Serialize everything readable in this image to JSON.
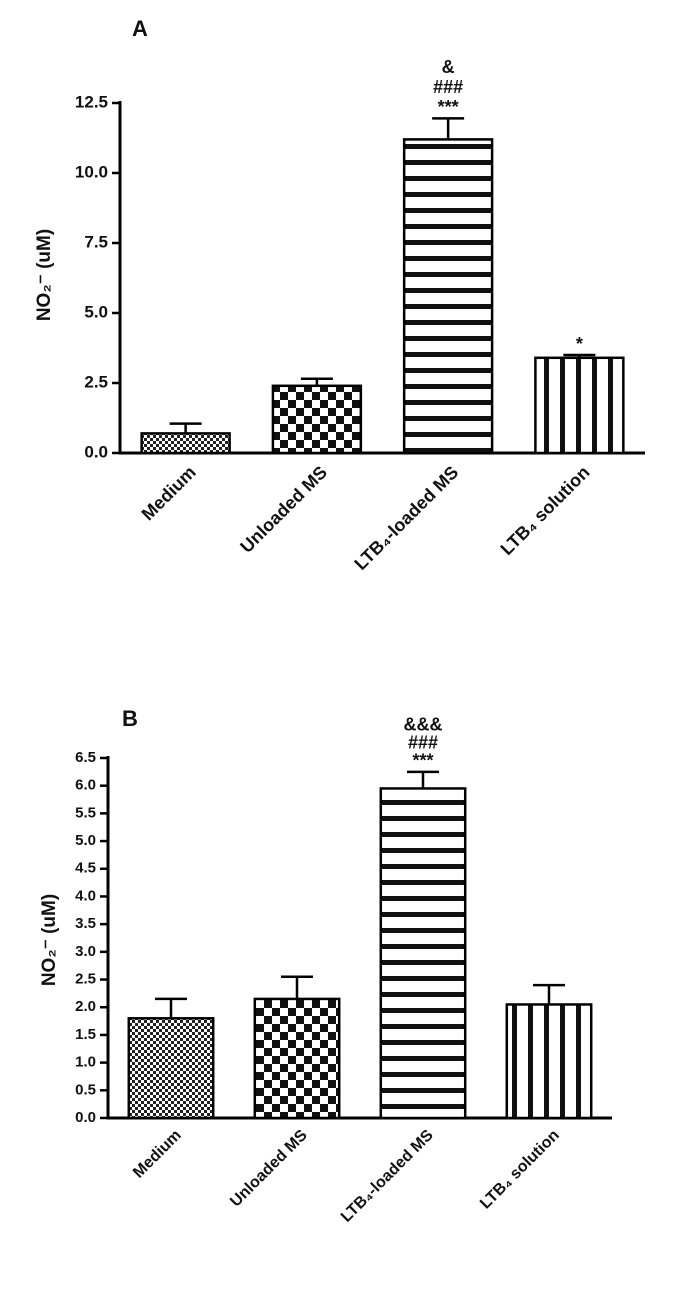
{
  "chart_data": [
    {
      "type": "bar",
      "panel": "A",
      "ylabel": "NO₂⁻ (uM)",
      "categories": [
        "Medium",
        "Unloaded MS",
        "LTB₄-loaded MS",
        "LTB₄ solution"
      ],
      "values": [
        0.7,
        2.4,
        11.2,
        3.4
      ],
      "errors": [
        0.35,
        0.25,
        0.75,
        0.1
      ],
      "annotations": [
        [],
        [],
        [
          "&",
          "###",
          "***"
        ],
        [
          "*"
        ]
      ],
      "patterns": [
        "dots",
        "checker",
        "hstripes",
        "vstripes"
      ],
      "ylim": [
        0,
        12.5
      ],
      "yticks": [
        {
          "value": 0,
          "label": "0.0"
        },
        2.5,
        {
          "value": 5,
          "label": "5.0"
        },
        7.5,
        {
          "value": 10,
          "label": "10.0"
        },
        12.5
      ]
    },
    {
      "type": "bar",
      "panel": "B",
      "ylabel": "NO₂⁻ (uM)",
      "categories": [
        "Medium",
        "Unloaded MS",
        "LTB₄-loaded MS",
        "LTB₄ solution"
      ],
      "values": [
        1.8,
        2.15,
        5.95,
        2.05
      ],
      "errors": [
        0.35,
        0.4,
        0.3,
        0.35
      ],
      "annotations": [
        [],
        [],
        [
          "&&&",
          "###",
          "***"
        ],
        []
      ],
      "patterns": [
        "dots",
        "checker",
        "hstripes",
        "vstripes"
      ],
      "ylim": [
        0,
        6.5
      ],
      "yticks": [
        {
          "value": 0,
          "label": "0.0"
        },
        0.5,
        {
          "value": 1,
          "label": "1.0"
        },
        1.5,
        {
          "value": 2,
          "label": "2.0"
        },
        2.5,
        {
          "value": 3,
          "label": "3.0"
        },
        3.5,
        {
          "value": 4,
          "label": "4.0"
        },
        4.5,
        {
          "value": 5,
          "label": "5.0"
        },
        5.5,
        {
          "value": 6,
          "label": "6.0"
        },
        6.5
      ]
    }
  ]
}
